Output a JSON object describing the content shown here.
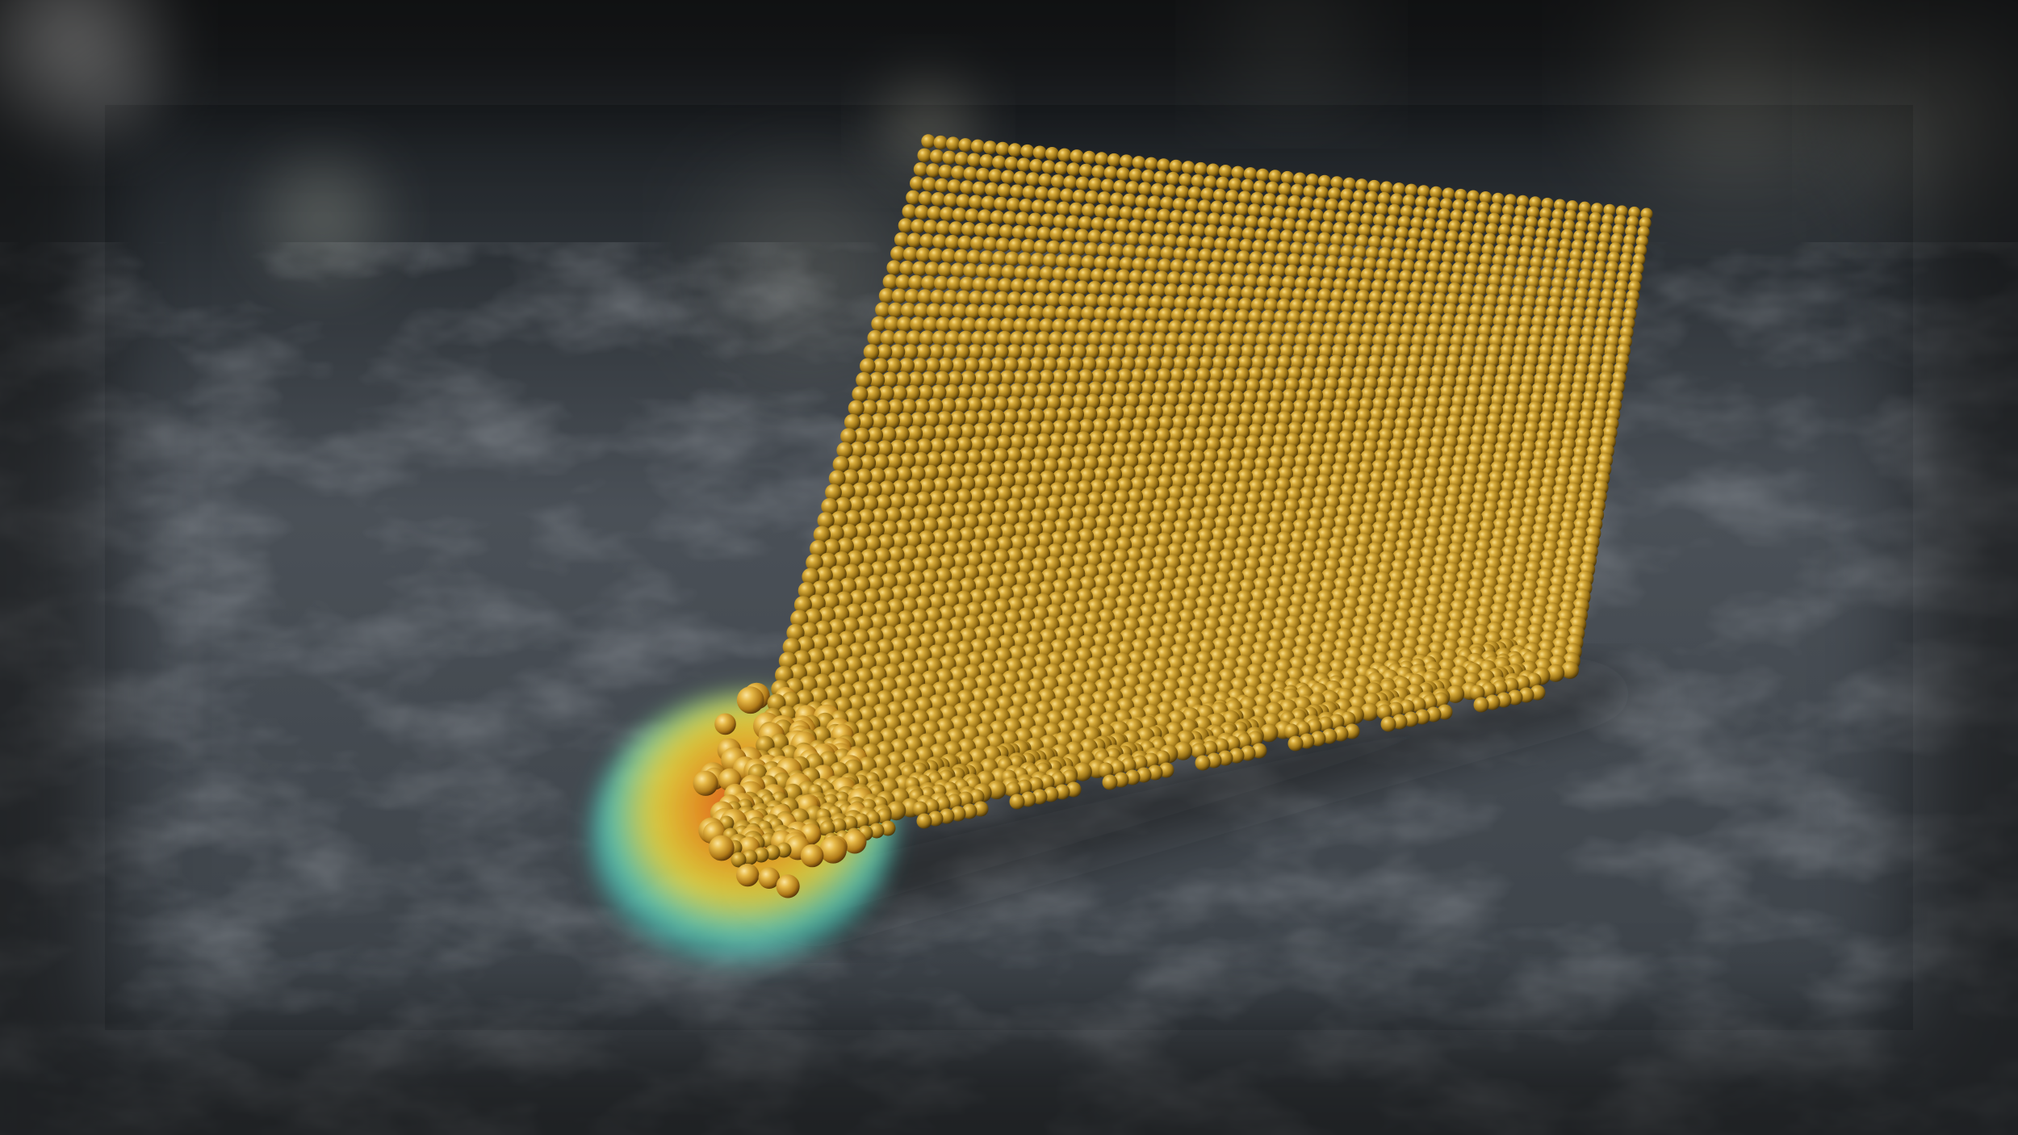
{
  "scene": {
    "subject": "gold-atom-nanocrystal",
    "palette": {
      "background_dark": "#1c2024",
      "background_mid": "#454b52",
      "floor_light": "#6f7780",
      "gold_highlight": "#e8c25a",
      "gold_base": "#b48a1c",
      "gold_shadow": "#5a420c",
      "heat_red": "#e0401a",
      "heat_orange": "#f29a1e",
      "heat_yellow": "#f2e23a",
      "heat_cyan": "#4fe0d0"
    }
  }
}
